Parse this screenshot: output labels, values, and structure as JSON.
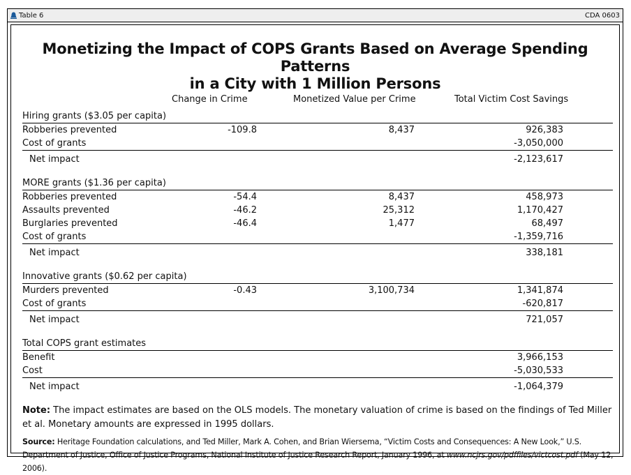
{
  "header": {
    "label": "Table 6",
    "code": "CDA 0603",
    "icon": "bell-icon"
  },
  "title": {
    "line1": "Monetizing the Impact of COPS Grants Based on Average Spending Patterns",
    "line2": "in a City with 1 Million Persons"
  },
  "columns": [
    "Change in Crime",
    "Monetized Value per Crime",
    "Total Victim Cost Savings"
  ],
  "sections": [
    {
      "title": "Hiring grants ($3.05 per capita)",
      "rows": [
        {
          "label": "Robberies prevented",
          "change": "-109.8",
          "value": "8,437",
          "total": "926,383"
        },
        {
          "label": "Cost of grants",
          "change": "",
          "value": "",
          "total": "-3,050,000"
        }
      ],
      "net": {
        "label": "Net impact",
        "total": "-2,123,617"
      }
    },
    {
      "title": "MORE grants ($1.36 per capita)",
      "rows": [
        {
          "label": "Robberies prevented",
          "change": "-54.4",
          "value": "8,437",
          "total": "458,973"
        },
        {
          "label": "Assaults prevented",
          "change": "-46.2",
          "value": "25,312",
          "total": "1,170,427"
        },
        {
          "label": "Burglaries prevented",
          "change": "-46.4",
          "value": "1,477",
          "total": "68,497"
        },
        {
          "label": "Cost of grants",
          "change": "",
          "value": "",
          "total": "-1,359,716"
        }
      ],
      "net": {
        "label": "Net impact",
        "total": "338,181"
      }
    },
    {
      "title": "Innovative grants ($0.62 per capita)",
      "rows": [
        {
          "label": "Murders prevented",
          "change": "-0.43",
          "value": "3,100,734",
          "total": "1,341,874"
        },
        {
          "label": "Cost of grants",
          "change": "",
          "value": "",
          "total": "-620,817"
        }
      ],
      "net": {
        "label": "Net impact",
        "total": "721,057"
      }
    },
    {
      "title": "Total COPS grant estimates",
      "rows": [
        {
          "label": "Benefit",
          "change": "",
          "value": "",
          "total": "3,966,153"
        },
        {
          "label": "Cost",
          "change": "",
          "value": "",
          "total": "-5,030,533"
        }
      ],
      "net": {
        "label": "Net impact",
        "total": "-1,064,379"
      }
    }
  ],
  "note": {
    "label": "Note:",
    "text": " The impact estimates are based on the OLS models. The monetary valuation of crime is based on the findings of Ted Miller et al. Monetary amounts are expressed in 1995 dollars."
  },
  "source": {
    "label": "Source:",
    "text": " Heritage Foundation calculations, and Ted Miller, Mark A. Cohen, and Brian Wiersema, “Victim Costs and Consequences: A New Look,” U.S. Department of Justice, Office of Justice Programs, National Institute of Justice Research Report, January 1996, at ",
    "url": "www.ncjrs.gov/pdffiles/victcost.pdf",
    "date": " (May 12, 2006)."
  }
}
